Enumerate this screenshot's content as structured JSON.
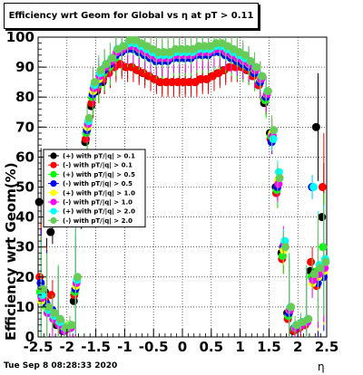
{
  "title": "Efficiency wrt Geom for Global vs   η at pT > 0.11",
  "timestamp": "Tue Sep  8 08:28:33 2020",
  "chart_data": {
    "type": "scatter",
    "title": "Efficiency wrt Geom for Global vs   η at pT > 0.11",
    "xlabel": "η",
    "ylabel": "Efficiency wrt Geom(%)",
    "xlim": [
      -2.5,
      2.5
    ],
    "ylim": [
      0,
      100
    ],
    "xticks": [
      "-2.5",
      "-2",
      "-1.5",
      "-1",
      "-0.5",
      "0",
      "0.5",
      "1",
      "1.5",
      "2",
      "2.5"
    ],
    "yticks": [
      "0",
      "10",
      "20",
      "30",
      "40",
      "50",
      "60",
      "70",
      "80",
      "90",
      "100"
    ],
    "grid": true,
    "legend_position": "left-middle",
    "x": [
      -2.45,
      -2.35,
      -2.25,
      -2.15,
      -2.05,
      -1.95,
      -1.85,
      -1.75,
      -1.65,
      -1.55,
      -1.45,
      -1.35,
      -1.25,
      -1.15,
      -1.05,
      -0.95,
      -0.85,
      -0.75,
      -0.65,
      -0.55,
      -0.45,
      -0.35,
      -0.25,
      -0.15,
      -0.05,
      0.05,
      0.15,
      0.25,
      0.35,
      0.45,
      0.55,
      0.65,
      0.75,
      0.85,
      0.95,
      1.05,
      1.15,
      1.25,
      1.35,
      1.45,
      1.55,
      1.65,
      1.75,
      1.85,
      1.95,
      2.05,
      2.15,
      2.25,
      2.35,
      2.45
    ],
    "series": [
      {
        "name": "(+) with pT/|q| > 0.1",
        "color": "#000000",
        "values": [
          45,
          15,
          35,
          4,
          2,
          3,
          12,
          40,
          65,
          77,
          82,
          85,
          88,
          90,
          91,
          90,
          90,
          89,
          88,
          87,
          86,
          85,
          85,
          85,
          85,
          85,
          85,
          85,
          86,
          86,
          87,
          88,
          89,
          90,
          90,
          90,
          89,
          87,
          84,
          78,
          68,
          50,
          28,
          8,
          2,
          3,
          4,
          22,
          70,
          40
        ]
      },
      {
        "name": "(-) with pT/|q| > 0.1",
        "color": "#ff0000",
        "values": [
          20,
          12,
          14,
          5,
          2,
          3,
          14,
          42,
          66,
          78,
          83,
          86,
          88,
          90,
          91,
          90,
          90,
          89,
          88,
          87,
          86,
          85,
          85,
          85,
          85,
          85,
          85,
          85,
          86,
          86,
          87,
          88,
          89,
          90,
          90,
          90,
          89,
          87,
          84,
          79,
          66,
          48,
          26,
          6,
          2,
          3,
          4,
          25,
          17,
          50
        ]
      },
      {
        "name": "(+) with pT/|q| > 0.5",
        "color": "#00ff00",
        "values": [
          15,
          10,
          8,
          6,
          3,
          4,
          15,
          43,
          68,
          80,
          84,
          88,
          90,
          93,
          95,
          96,
          96,
          95,
          94,
          93,
          92,
          92,
          93,
          93,
          93,
          93,
          93,
          94,
          94,
          94,
          95,
          95,
          94,
          93,
          92,
          91,
          90,
          88,
          85,
          79,
          67,
          49,
          27,
          7,
          3,
          4,
          5,
          20,
          22,
          30
        ]
      },
      {
        "name": "(-) with pT/|q| > 0.5",
        "color": "#0000ff",
        "values": [
          18,
          11,
          9,
          5,
          2,
          3,
          16,
          44,
          69,
          81,
          85,
          89,
          91,
          94,
          95,
          96,
          96,
          95,
          94,
          93,
          92,
          92,
          92,
          93,
          93,
          93,
          93,
          94,
          94,
          94,
          95,
          95,
          94,
          93,
          92,
          91,
          90,
          88,
          85,
          80,
          65,
          50,
          30,
          8,
          3,
          4,
          5,
          50,
          18,
          20
        ]
      },
      {
        "name": "(+) with pT/|q| > 1.0",
        "color": "#ffff00",
        "values": [
          12,
          9,
          7,
          5,
          3,
          4,
          17,
          45,
          70,
          82,
          86,
          90,
          92,
          95,
          96,
          97,
          97,
          96,
          95,
          94,
          93,
          93,
          93,
          94,
          94,
          94,
          94,
          95,
          95,
          95,
          96,
          96,
          95,
          94,
          93,
          92,
          91,
          89,
          86,
          81,
          68,
          52,
          29,
          9,
          3,
          4,
          5,
          18,
          20,
          22
        ]
      },
      {
        "name": "(-) with pT/|q| > 1.0",
        "color": "#ff00ff",
        "values": [
          13,
          8,
          6,
          4,
          2,
          3,
          18,
          46,
          71,
          83,
          87,
          90,
          92,
          95,
          96,
          97,
          97,
          96,
          95,
          94,
          93,
          93,
          93,
          94,
          94,
          94,
          94,
          95,
          95,
          95,
          96,
          96,
          95,
          94,
          93,
          92,
          91,
          89,
          86,
          81,
          67,
          51,
          31,
          9,
          3,
          4,
          5,
          19,
          21,
          23
        ]
      },
      {
        "name": "(+) with pT/|q| > 2.0",
        "color": "#00ffff",
        "values": [
          14,
          9,
          7,
          5,
          3,
          4,
          19,
          47,
          72,
          84,
          88,
          91,
          93,
          96,
          97,
          98,
          98,
          97,
          96,
          95,
          94,
          94,
          94,
          95,
          95,
          95,
          95,
          96,
          96,
          96,
          97,
          97,
          96,
          95,
          94,
          93,
          92,
          90,
          87,
          82,
          66,
          55,
          32,
          10,
          4,
          5,
          6,
          50,
          24,
          26
        ]
      },
      {
        "name": "(-) with pT/|q| > 2.0",
        "color": "#66cc55",
        "values": [
          16,
          10,
          8,
          6,
          3,
          4,
          20,
          48,
          73,
          85,
          89,
          91,
          93,
          96,
          97,
          99,
          99,
          98,
          97,
          96,
          95,
          95,
          95,
          96,
          96,
          96,
          96,
          97,
          97,
          97,
          98,
          98,
          97,
          96,
          95,
          94,
          92,
          90,
          87,
          82,
          69,
          53,
          30,
          10,
          4,
          5,
          6,
          21,
          23,
          25
        ]
      }
    ]
  }
}
